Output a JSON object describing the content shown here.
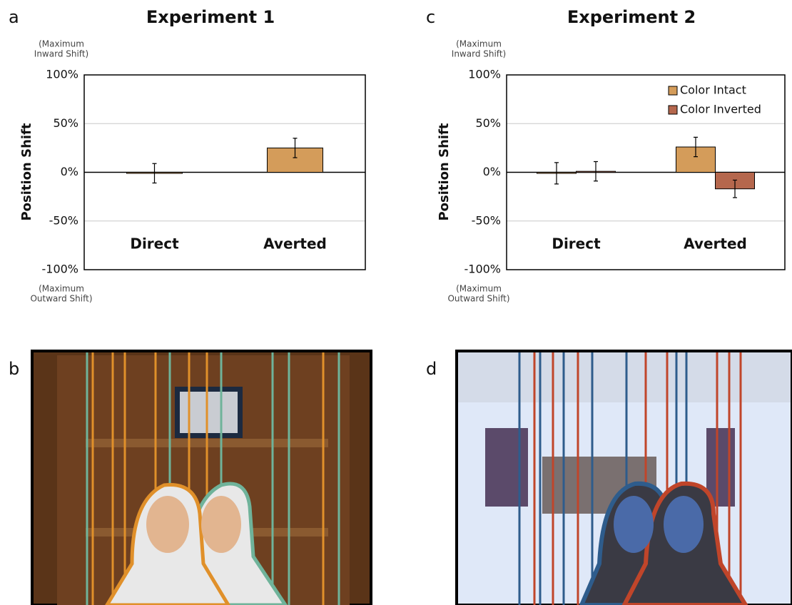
{
  "chart_data": [
    {
      "type": "bar",
      "panel_label": "a",
      "title": "Experiment 1",
      "y_label": "Position Shift",
      "y_top_note": [
        "(Maximum",
        "Inward Shift)"
      ],
      "y_bottom_note": [
        "(Maximum",
        "Outward Shift)"
      ],
      "categories": [
        "Direct",
        "Averted"
      ],
      "values": [
        -1,
        25
      ],
      "errors": [
        10,
        10
      ],
      "color": "#d49c5a",
      "ylim": [
        -100,
        100
      ],
      "yticks": [
        {
          "value": -100,
          "label": "-100%"
        },
        {
          "value": -50,
          "label": "-50%"
        },
        {
          "value": 0,
          "label": "0%"
        },
        {
          "value": 50,
          "label": "50%"
        },
        {
          "value": 100,
          "label": "100%"
        }
      ],
      "grid": true
    },
    {
      "type": "bar",
      "panel_label": "c",
      "title": "Experiment 2",
      "y_label": "Position Shift",
      "y_top_note": [
        "(Maximum",
        "Inward Shift)"
      ],
      "y_bottom_note": [
        "(Maximum",
        "Outward Shift)"
      ],
      "categories": [
        "Direct",
        "Averted"
      ],
      "series": [
        {
          "name": "Color Intact",
          "color": "#d49c5a",
          "values": [
            -1,
            26
          ],
          "errors": [
            11,
            10
          ]
        },
        {
          "name": "Color Inverted",
          "color": "#b5674d",
          "values": [
            1,
            -17
          ],
          "errors": [
            10,
            9
          ]
        }
      ],
      "ylim": [
        -100,
        100
      ],
      "yticks": [
        {
          "value": -100,
          "label": "-100%"
        },
        {
          "value": -50,
          "label": "-50%"
        },
        {
          "value": 0,
          "label": "0%"
        },
        {
          "value": 50,
          "label": "50%"
        },
        {
          "value": 100,
          "label": "100%"
        }
      ],
      "grid": true,
      "legend": "upper right"
    }
  ],
  "images": [
    {
      "panel_label": "b"
    },
    {
      "panel_label": "d"
    }
  ]
}
